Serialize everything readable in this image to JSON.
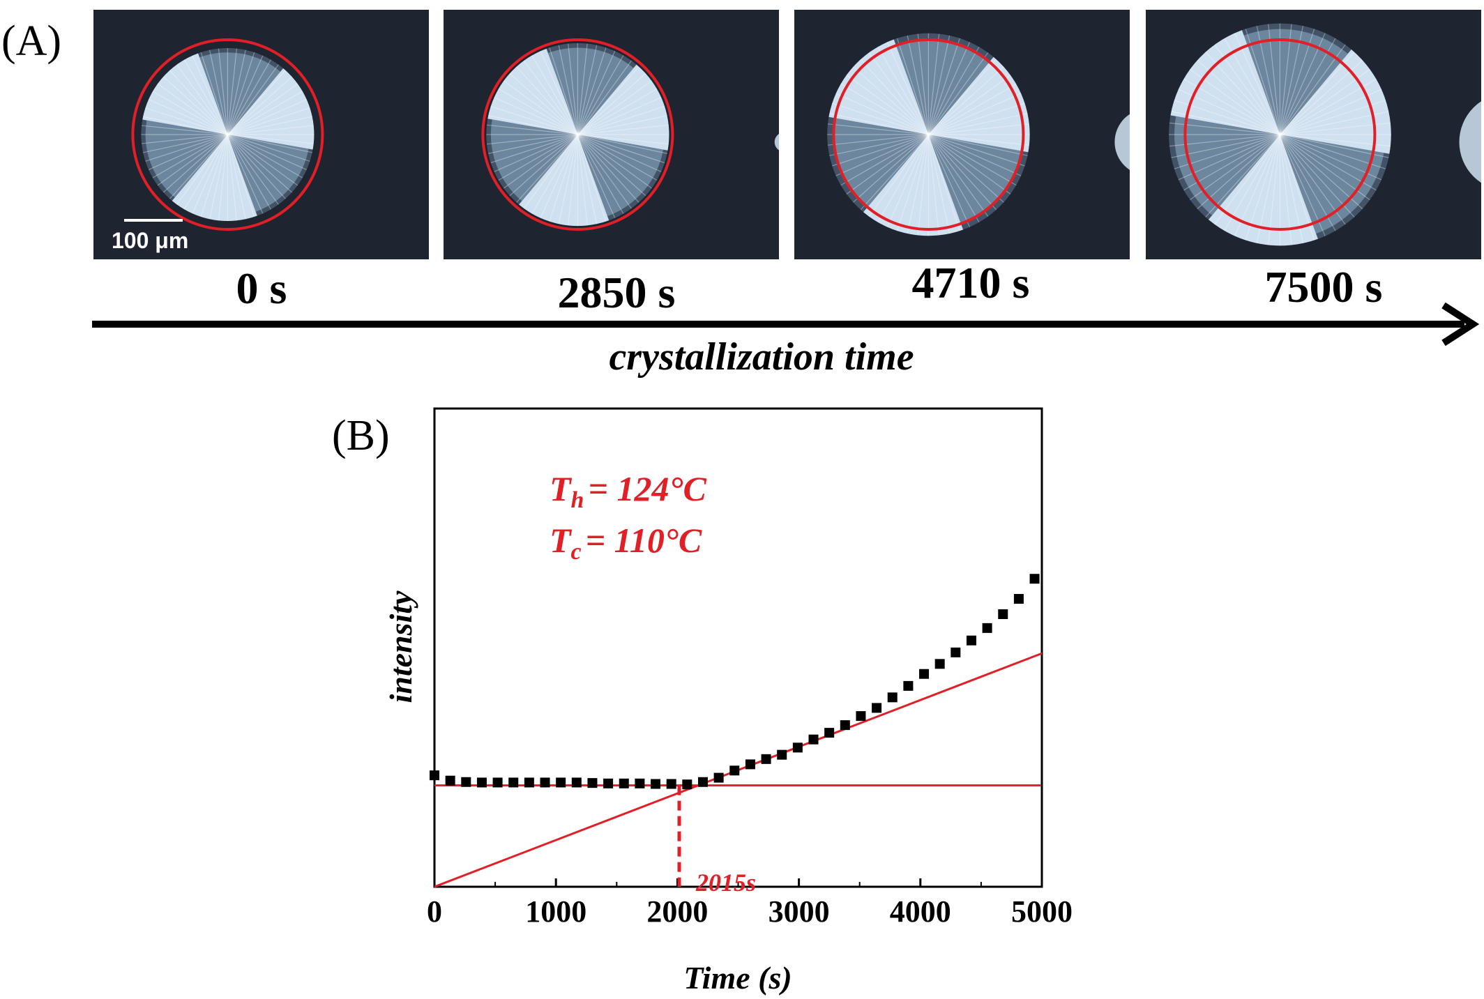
{
  "panel_a": {
    "label": "(A)",
    "scale_bar": "100 μm",
    "frames": [
      {
        "time": "0 s",
        "radius_ratio": 0.62
      },
      {
        "time": "2850 s",
        "radius_ratio": 0.68
      },
      {
        "time": "4710 s",
        "radius_ratio": 0.8
      },
      {
        "time": "7500 s",
        "radius_ratio": 0.92
      }
    ],
    "axis_caption": "crystallization time",
    "colors": {
      "background": "#1f2431",
      "circle": "#e01f26",
      "crystal": "#dff0ff"
    }
  },
  "panel_b": {
    "label": "(B)",
    "annotations": {
      "th_symbol": "T",
      "th_sub": "h",
      "th_value": "= 124°C",
      "tc_symbol": "T",
      "tc_sub": "c",
      "tc_value": "= 110°C",
      "intersection_label": "2015s"
    }
  },
  "chart_data": {
    "type": "scatter",
    "title": "",
    "xlabel": "Time (s)",
    "ylabel": "intensity",
    "xlim": [
      0,
      5000
    ],
    "ylim": [
      0,
      1
    ],
    "xticks": [
      "0",
      "1000",
      "2000",
      "3000",
      "4000",
      "5000"
    ],
    "series": [
      {
        "marker": "square",
        "color": "#000000",
        "x": [
          0,
          130,
          260,
          390,
          520,
          650,
          780,
          910,
          1040,
          1170,
          1300,
          1430,
          1560,
          1690,
          1820,
          1950,
          2080,
          2210,
          2340,
          2470,
          2600,
          2730,
          2860,
          2990,
          3120,
          3250,
          3380,
          3510,
          3640,
          3770,
          3900,
          4030,
          4160,
          4290,
          4420,
          4550,
          4680,
          4810,
          4940
        ],
        "y": [
          0.233,
          0.222,
          0.219,
          0.218,
          0.218,
          0.218,
          0.218,
          0.218,
          0.218,
          0.218,
          0.217,
          0.216,
          0.216,
          0.216,
          0.215,
          0.215,
          0.214,
          0.219,
          0.228,
          0.243,
          0.256,
          0.267,
          0.276,
          0.291,
          0.308,
          0.322,
          0.338,
          0.357,
          0.374,
          0.396,
          0.42,
          0.445,
          0.466,
          0.49,
          0.515,
          0.541,
          0.57,
          0.602,
          0.644
        ]
      }
    ],
    "fit_lines": [
      {
        "name": "",
        "color": "#e01f26",
        "x": [
          0,
          4990
        ],
        "y": [
          0.212,
          0.212
        ]
      },
      {
        "name": "",
        "color": "#e01f26",
        "x": [
          0,
          5000
        ],
        "y": [
          0.0,
          0.488
        ]
      }
    ],
    "intersection": {
      "x": 2015,
      "color": "#e01f26",
      "style": "dashed"
    }
  }
}
